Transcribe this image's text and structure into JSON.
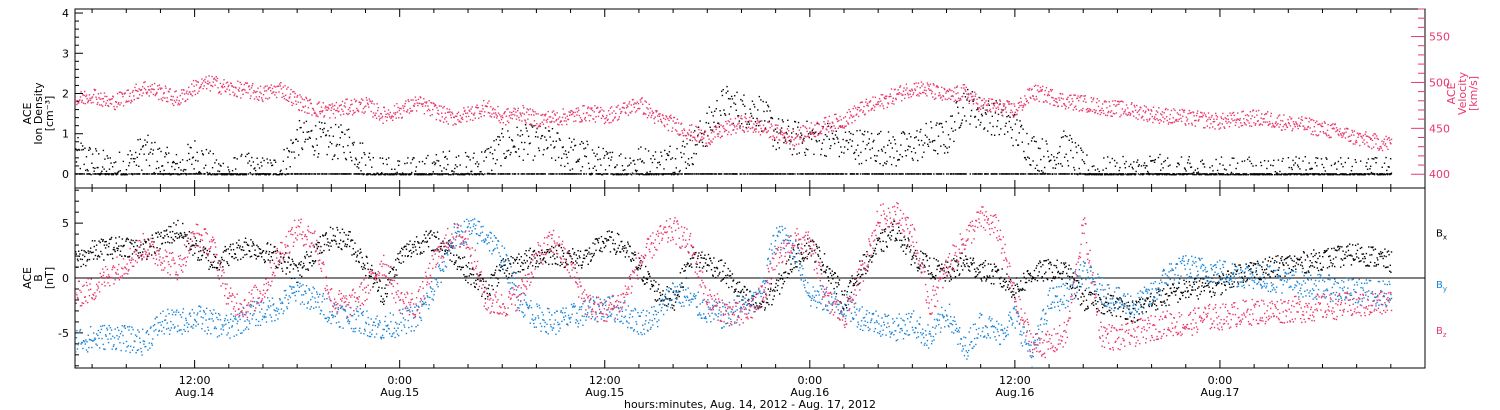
{
  "x_axis": {
    "title": "hours:minutes, Aug. 14, 2012 - Aug. 17, 2012",
    "tick_labels": [
      {
        "time": "12:00",
        "date": "Aug.14",
        "hour": 12
      },
      {
        "time": "0:00",
        "date": "Aug.15",
        "hour": 24
      },
      {
        "time": "12:00",
        "date": "Aug.15",
        "hour": 36
      },
      {
        "time": "0:00",
        "date": "Aug.16",
        "hour": 48
      },
      {
        "time": "12:00",
        "date": "Aug.16",
        "hour": 60
      },
      {
        "time": "0:00",
        "date": "Aug.17",
        "hour": 72
      }
    ]
  },
  "colors": {
    "density": "#000000",
    "velocity": "#e8386b",
    "bx": "#000000",
    "by": "#1a84d6",
    "bz": "#e8386b"
  },
  "chart_data": [
    {
      "type": "scatter",
      "xlabel": "hours:minutes, Aug. 14, 2012 - Aug. 17, 2012",
      "x_unit": "hours since 0:00 Aug.14",
      "xlim": [
        5,
        84
      ],
      "ylabel_left": "ACE Ion Density [cm^-3]",
      "ylabel_left_lines": [
        "ACE",
        "Ion Density",
        "[cm⁻³]"
      ],
      "ylim_left": [
        -0.2,
        4.1
      ],
      "yticks_left": [
        0,
        1,
        2,
        3,
        4
      ],
      "ylabel_right": "ACE Velocity [km/s]",
      "ylabel_right_lines": [
        "ACE",
        "Velocity",
        "[km/s]"
      ],
      "ylim_right": [
        385,
        580
      ],
      "yticks_right": [
        400,
        450,
        500,
        550
      ],
      "series": [
        {
          "axis": "left",
          "x": [
            5,
            6,
            7,
            8,
            9,
            10,
            11,
            12,
            13,
            14,
            15,
            16,
            17,
            18,
            19,
            20,
            21,
            22,
            23,
            24,
            25,
            26,
            27,
            28,
            29,
            30,
            31,
            32,
            33,
            34,
            35,
            36,
            37,
            38,
            39,
            40,
            41,
            42,
            43,
            44,
            45,
            46,
            47,
            48,
            49,
            50,
            51,
            52,
            53,
            54,
            55,
            56,
            57,
            58,
            59,
            60,
            61,
            62,
            63,
            64,
            65,
            66,
            67,
            68,
            69,
            70,
            71,
            72,
            73,
            74,
            75,
            76,
            77,
            78,
            79,
            80,
            81,
            82
          ],
          "y": [
            0.5,
            0.3,
            0.1,
            0.2,
            0.6,
            0.3,
            0.1,
            0.5,
            0.1,
            0.0,
            0.1,
            0.0,
            0.1,
            0.9,
            0.9,
            0.8,
            0.8,
            0.3,
            0.0,
            0.0,
            0.0,
            0.1,
            0.2,
            0.1,
            0.3,
            0.7,
            0.8,
            0.8,
            0.7,
            0.5,
            0.4,
            0.2,
            0.2,
            0.3,
            0.2,
            0.4,
            0.6,
            1.2,
            1.8,
            1.6,
            1.6,
            1.0,
            0.9,
            0.9,
            0.9,
            0.8,
            0.7,
            0.7,
            0.6,
            0.7,
            0.9,
            0.9,
            1.8,
            1.5,
            1.4,
            1.1,
            0.6,
            0.4,
            0.7,
            0.1,
            0.0,
            0.0,
            0.0,
            0.1,
            0.0,
            0.0,
            0.0,
            0.0,
            0.0,
            0.0,
            0.0,
            0.0,
            0.0,
            0.0,
            0.0,
            0.0,
            0.0,
            0.0
          ]
        },
        {
          "axis": "right",
          "x": [
            5,
            6,
            7,
            8,
            9,
            10,
            11,
            12,
            13,
            14,
            15,
            16,
            17,
            18,
            19,
            20,
            21,
            22,
            23,
            24,
            25,
            26,
            27,
            28,
            29,
            30,
            31,
            32,
            33,
            34,
            35,
            36,
            37,
            38,
            39,
            40,
            41,
            42,
            43,
            44,
            45,
            46,
            47,
            48,
            49,
            50,
            51,
            52,
            53,
            54,
            55,
            56,
            57,
            58,
            59,
            60,
            61,
            62,
            63,
            64,
            65,
            66,
            67,
            68,
            69,
            70,
            71,
            72,
            73,
            74,
            75,
            76,
            77,
            78,
            79,
            80,
            81,
            82
          ],
          "y": [
            480,
            488,
            478,
            485,
            495,
            490,
            482,
            496,
            500,
            494,
            492,
            488,
            494,
            480,
            472,
            470,
            474,
            476,
            465,
            470,
            478,
            470,
            462,
            466,
            474,
            462,
            468,
            460,
            462,
            464,
            468,
            464,
            470,
            478,
            462,
            455,
            446,
            440,
            450,
            456,
            452,
            446,
            440,
            448,
            455,
            460,
            472,
            478,
            487,
            495,
            492,
            485,
            490,
            476,
            474,
            470,
            490,
            486,
            480,
            478,
            474,
            472,
            470,
            466,
            464,
            462,
            460,
            458,
            460,
            462,
            460,
            456,
            454,
            450,
            446,
            440,
            436,
            434
          ]
        }
      ]
    },
    {
      "type": "scatter",
      "xlabel": "hours:minutes, Aug. 14, 2012 - Aug. 17, 2012",
      "x_unit": "hours since 0:00 Aug.14",
      "xlim": [
        5,
        84
      ],
      "ylabel": "ACE B [nT]",
      "ylabel_lines": [
        "ACE",
        "B",
        "[nT]"
      ],
      "ylim": [
        -8.2,
        8.2
      ],
      "yticks": [
        -5,
        0,
        5
      ],
      "series": [
        {
          "name": "Bx",
          "x": [
            5,
            6,
            7,
            8,
            9,
            10,
            11,
            12,
            13,
            14,
            15,
            16,
            17,
            18,
            19,
            20,
            21,
            22,
            23,
            24,
            25,
            26,
            27,
            28,
            29,
            30,
            31,
            32,
            33,
            34,
            35,
            36,
            37,
            38,
            39,
            40,
            41,
            42,
            43,
            44,
            45,
            46,
            47,
            48,
            49,
            50,
            51,
            52,
            53,
            54,
            55,
            56,
            57,
            58,
            59,
            60,
            61,
            62,
            63,
            64,
            65,
            66,
            67,
            68,
            69,
            70,
            71,
            72,
            73,
            74,
            75,
            76,
            77,
            78,
            79,
            80,
            81,
            82
          ],
          "y": [
            1.5,
            2.5,
            2.8,
            3.0,
            2.6,
            3.5,
            4.5,
            2.8,
            1.5,
            2.2,
            3.0,
            2.5,
            1.8,
            0.5,
            2.5,
            3.8,
            3.5,
            1.2,
            -1.5,
            2.0,
            3.2,
            3.5,
            2.5,
            0.5,
            -1.0,
            0.8,
            1.5,
            2.0,
            2.3,
            1.8,
            2.0,
            3.5,
            3.0,
            1.0,
            -1.2,
            -2.0,
            2.0,
            1.5,
            0.5,
            -1.5,
            -2.5,
            -1.0,
            1.8,
            3.0,
            1.0,
            -2.0,
            1.0,
            3.0,
            4.5,
            2.0,
            1.0,
            0.5,
            1.5,
            0.8,
            0.2,
            -1.0,
            0.5,
            0.8,
            0.6,
            -2.0,
            -2.2,
            -2.5,
            -3.0,
            -2.0,
            -1.5,
            -1.0,
            -0.8,
            -0.5,
            0.5,
            0.8,
            1.0,
            1.3,
            1.5,
            1.8,
            2.0,
            2.3,
            2.0,
            1.5
          ]
        },
        {
          "name": "By",
          "x": [
            5,
            6,
            7,
            8,
            9,
            10,
            11,
            12,
            13,
            14,
            15,
            16,
            17,
            18,
            19,
            20,
            21,
            22,
            23,
            24,
            25,
            26,
            27,
            28,
            29,
            30,
            31,
            32,
            33,
            34,
            35,
            36,
            37,
            38,
            39,
            40,
            41,
            42,
            43,
            44,
            45,
            46,
            47,
            48,
            49,
            50,
            51,
            52,
            53,
            54,
            55,
            56,
            57,
            58,
            59,
            60,
            61,
            62,
            63,
            64,
            65,
            66,
            67,
            68,
            69,
            70,
            71,
            72,
            73,
            74,
            75,
            76,
            77,
            78,
            79,
            80,
            81,
            82
          ],
          "y": [
            -5.5,
            -5.5,
            -5.2,
            -5.5,
            -5.8,
            -4.0,
            -4.0,
            -3.5,
            -4.0,
            -4.5,
            -3.5,
            -3.0,
            -2.5,
            -1.0,
            -2.0,
            -3.0,
            -3.5,
            -4.0,
            -4.5,
            -4.0,
            -3.5,
            -1.0,
            3.5,
            4.5,
            4.0,
            2.0,
            -2.0,
            -3.5,
            -4.0,
            -3.5,
            -3.0,
            -2.5,
            -3.0,
            -4.0,
            -3.5,
            -1.0,
            -2.0,
            -3.0,
            -3.5,
            -2.5,
            -2.0,
            4.0,
            3.0,
            -1.5,
            -2.0,
            -2.5,
            -3.5,
            -4.0,
            -4.5,
            -4.0,
            -5.5,
            -3.0,
            -6.5,
            -4.0,
            -5.0,
            -3.5,
            -7.0,
            -2.0,
            -1.5,
            0.5,
            -1.0,
            -2.0,
            -2.5,
            -1.5,
            0.5,
            1.0,
            0.8,
            0.6,
            0.4,
            0.2,
            0.0,
            -0.3,
            -0.6,
            -0.8,
            -1.0,
            -1.2,
            -1.3,
            -1.4
          ]
        },
        {
          "name": "Bz",
          "x": [
            5,
            6,
            7,
            8,
            9,
            10,
            11,
            12,
            13,
            14,
            15,
            16,
            17,
            18,
            19,
            20,
            21,
            22,
            23,
            24,
            25,
            26,
            27,
            28,
            29,
            30,
            31,
            32,
            33,
            34,
            35,
            36,
            37,
            38,
            39,
            40,
            41,
            42,
            43,
            44,
            45,
            46,
            47,
            48,
            49,
            50,
            51,
            52,
            53,
            54,
            55,
            56,
            57,
            58,
            59,
            60,
            61,
            62,
            63,
            64,
            65,
            66,
            67,
            68,
            69,
            70,
            71,
            72,
            73,
            74,
            75,
            76,
            77,
            78,
            79,
            80,
            81,
            82
          ],
          "y": [
            -1.5,
            -1.0,
            0.5,
            1.5,
            3.0,
            2.0,
            1.0,
            4.0,
            3.0,
            -2.0,
            -2.5,
            -1.0,
            2.5,
            4.5,
            3.5,
            -2.0,
            -2.5,
            -1.0,
            1.5,
            -2.0,
            -2.5,
            1.5,
            4.0,
            3.5,
            -2.0,
            -2.5,
            -1.5,
            2.0,
            3.5,
            1.0,
            -2.5,
            -3.0,
            -2.0,
            1.5,
            3.5,
            4.5,
            3.0,
            -2.0,
            -3.0,
            -3.5,
            -2.0,
            1.5,
            3.5,
            3.0,
            -2.0,
            -3.5,
            0.5,
            5.5,
            6.0,
            4.0,
            -2.5,
            1.0,
            3.5,
            5.5,
            4.5,
            -2.0,
            -6.0,
            -6.0,
            -5.0,
            5.0,
            -5.0,
            -5.5,
            -5.0,
            -4.5,
            -4.0,
            -4.2,
            -3.5,
            -3.5,
            -3.2,
            -3.0,
            -3.0,
            -2.8,
            -2.8,
            -2.6,
            -2.5,
            -2.4,
            -2.3,
            -2.2
          ]
        }
      ],
      "legend_position": "right",
      "legend_labels": [
        {
          "base": "B",
          "sub": "x"
        },
        {
          "base": "B",
          "sub": "y"
        },
        {
          "base": "B",
          "sub": "z"
        }
      ]
    }
  ]
}
